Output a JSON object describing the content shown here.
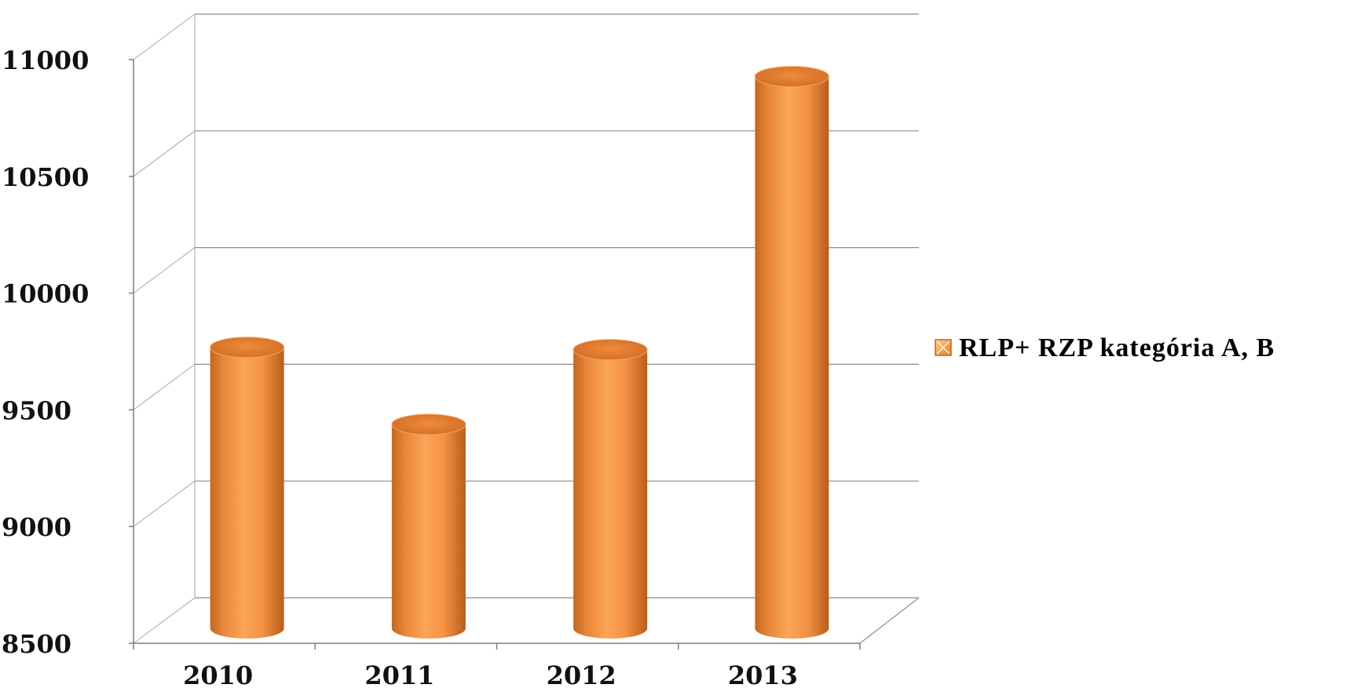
{
  "chart_data": {
    "type": "bar",
    "style": "3d-cylinder",
    "title": "",
    "xlabel": "",
    "ylabel": "",
    "categories": [
      "2010",
      "2011",
      "2012",
      "2013"
    ],
    "series": [
      {
        "name": "RLP+ RZP kategória A, B",
        "color": "#F79646",
        "values": [
          9670,
          9340,
          9660,
          10830
        ]
      }
    ],
    "ylim": [
      8500,
      11000
    ],
    "yticks": [
      8500,
      9000,
      9500,
      10000,
      10500,
      11000
    ],
    "ytick_labels": [
      "8500",
      "9000",
      "9500",
      "10000",
      "10500",
      "11000"
    ],
    "grid": true,
    "legend_position": "right"
  }
}
